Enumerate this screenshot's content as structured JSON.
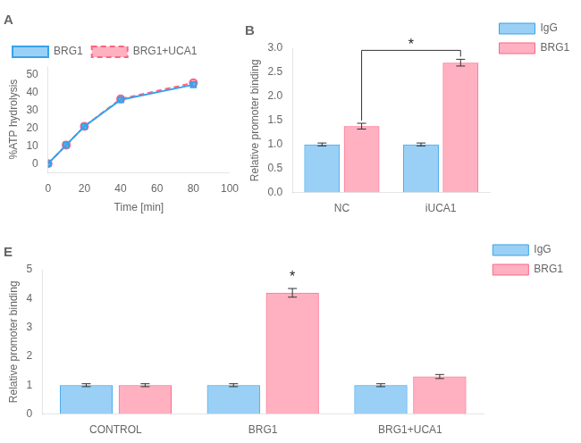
{
  "chart_data": [
    {
      "type": "line",
      "title": "A",
      "x": [
        0,
        10,
        20,
        40,
        80
      ],
      "series": [
        {
          "name": "BRG1",
          "values": [
            0,
            10.5,
            21.0,
            36.0,
            44.5
          ],
          "marker": "square",
          "line_style": "solid"
        },
        {
          "name": "BRG1+UCA1",
          "values": [
            0,
            10.5,
            21.0,
            36.5,
            45.5
          ],
          "marker": "circle",
          "line_style": "dashed"
        }
      ],
      "xlabel": "Time [min]",
      "ylabel": "%ATP hydrolysis",
      "xlim": [
        0,
        100
      ],
      "ylim": [
        -5,
        55
      ],
      "xticks": [
        0,
        20,
        40,
        60,
        80,
        100
      ],
      "yticks": [
        0,
        10,
        20,
        30,
        40,
        50
      ],
      "grid": false,
      "legend": "upper left"
    },
    {
      "type": "bar",
      "title": "B",
      "categories": [
        "NC",
        "iUCA1"
      ],
      "series": [
        {
          "name": "IgG",
          "values": [
            1.0,
            1.0
          ],
          "errors": [
            0.03,
            0.03
          ]
        },
        {
          "name": "BRG1",
          "values": [
            1.38,
            2.7
          ],
          "errors": [
            0.06,
            0.07
          ]
        }
      ],
      "ylabel": "Relative promoter binding",
      "ylim": [
        0,
        3.0
      ],
      "yticks": [
        {
          "value": 0.0,
          "label": "0.0"
        },
        0.5,
        {
          "value": 1.0,
          "label": "1.0"
        },
        1.5,
        {
          "value": 2.0,
          "label": "2.0"
        },
        2.5,
        {
          "value": 3.0,
          "label": "3.0"
        }
      ],
      "annotations": [
        {
          "text": "*",
          "series": "BRG1",
          "from": "NC",
          "to": "iUCA1"
        }
      ],
      "grid": false,
      "legend": "upper right"
    },
    {
      "type": "bar",
      "title": "E",
      "categories": [
        "CONTROL",
        "BRG1",
        "BRG1+UCA1"
      ],
      "series": [
        {
          "name": "IgG",
          "values": [
            1.0,
            1.0,
            1.0
          ],
          "errors": [
            0.05,
            0.05,
            0.05
          ]
        },
        {
          "name": "BRG1",
          "values": [
            1.0,
            4.2,
            1.3
          ],
          "errors": [
            0.05,
            0.15,
            0.07
          ]
        }
      ],
      "ylabel": "Relative promoter binding",
      "ylim": [
        0,
        5
      ],
      "yticks": [
        0,
        1,
        2,
        3,
        4,
        5
      ],
      "annotations": [
        {
          "text": "*",
          "series": "BRG1",
          "category": "BRG1"
        }
      ],
      "grid": false,
      "legend": "upper right"
    }
  ]
}
